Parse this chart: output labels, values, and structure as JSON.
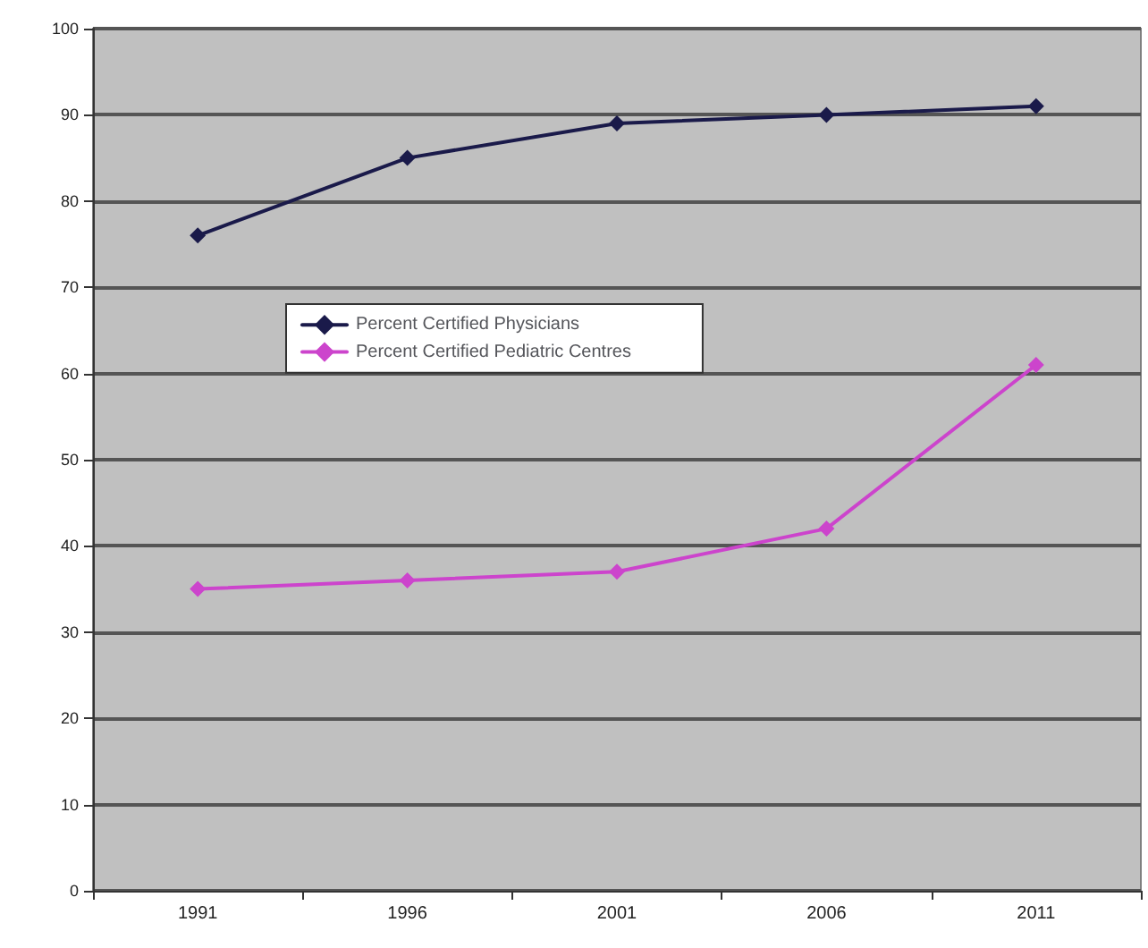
{
  "chart_data": {
    "type": "line",
    "categories": [
      "1991",
      "1996",
      "2001",
      "2006",
      "2011"
    ],
    "series": [
      {
        "name": "Percent Certified Physicians",
        "color": "#1a1a4a",
        "values": [
          76,
          85,
          89,
          90,
          91
        ]
      },
      {
        "name": "Percent Certified Pediatric Centres",
        "color": "#cc44cc",
        "values": [
          35,
          36,
          37,
          42,
          61
        ]
      }
    ],
    "ylim": [
      0,
      100
    ],
    "yticks": [
      0,
      10,
      20,
      30,
      40,
      50,
      60,
      70,
      80,
      90,
      100
    ],
    "grid": "y",
    "legend": "center",
    "marker": "diamond",
    "line_style": "solid"
  }
}
